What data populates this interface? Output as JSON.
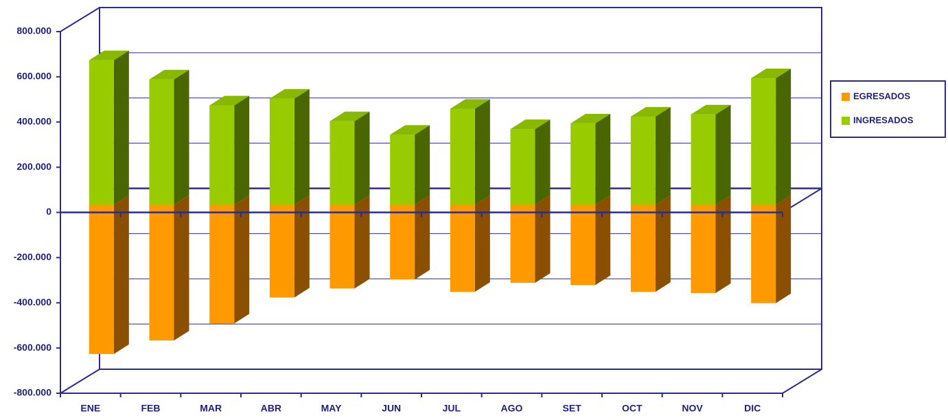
{
  "chart_data": {
    "type": "bar3d_stacked",
    "categories": [
      "ENE",
      "FEB",
      "MAR",
      "ABR",
      "MAY",
      "JUN",
      "JUL",
      "AGO",
      "SET",
      "OCT",
      "NOV",
      "DIC"
    ],
    "series": [
      {
        "name": "EGRESADOS",
        "color": "#ff9900",
        "values": [
          -660000,
          -600000,
          -525000,
          -410000,
          -370000,
          -330000,
          -385000,
          -345000,
          -355000,
          -385000,
          -390000,
          -435000
        ]
      },
      {
        "name": "INGRESADOS",
        "color": "#99cc00",
        "values": [
          640000,
          555000,
          440000,
          470000,
          370000,
          310000,
          425000,
          335000,
          360000,
          390000,
          400000,
          560000
        ]
      }
    ],
    "ylim": [
      -800000,
      800000
    ],
    "yticks": [
      {
        "value": -800000,
        "label": "-800.000"
      },
      {
        "value": -600000,
        "label": "-600.000"
      },
      {
        "value": -400000,
        "label": "-400.000"
      },
      {
        "value": -200000,
        "label": "-200.000"
      },
      0,
      {
        "value": 200000,
        "label": "200.000"
      },
      {
        "value": 400000,
        "label": "400.000"
      },
      {
        "value": 600000,
        "label": "600.000"
      },
      {
        "value": 800000,
        "label": "800.000"
      }
    ],
    "grid": true,
    "legend": "right"
  }
}
